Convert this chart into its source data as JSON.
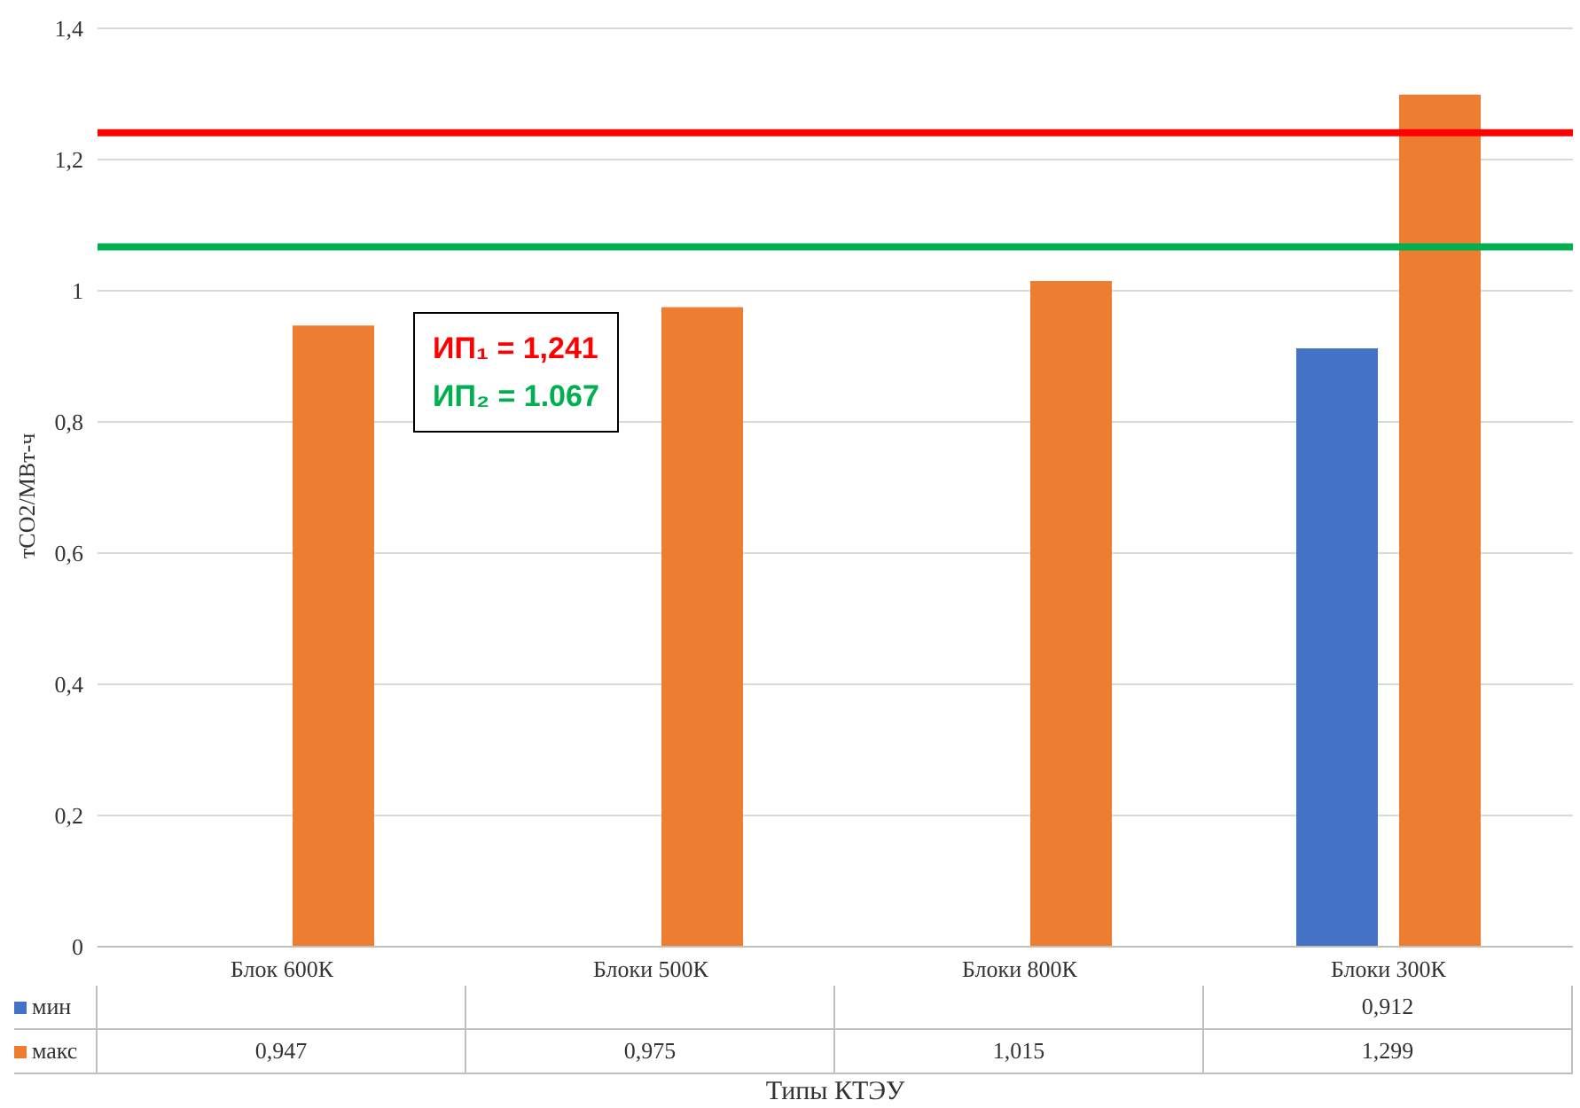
{
  "chart_data": {
    "type": "bar",
    "xlabel": "Типы КТЭУ",
    "ylabel": "тCO2/МВт-ч",
    "categories": [
      "Блок 600К",
      "Блоки 500К",
      "Блоки 800К",
      "Блоки 300К"
    ],
    "series": [
      {
        "name": "мин",
        "color": "#4472c4",
        "values": [
          null,
          null,
          null,
          0.912
        ],
        "value_labels": [
          null,
          null,
          null,
          "0,912"
        ]
      },
      {
        "name": "макс",
        "color": "#ed7d31",
        "values": [
          0.947,
          0.975,
          1.015,
          1.299
        ],
        "value_labels": [
          "0,947",
          "0,975",
          "1,015",
          "1,299"
        ]
      }
    ],
    "ylim": [
      0,
      1.4
    ],
    "yticks": [
      0,
      {
        "value": 0.2,
        "label": "0,2"
      },
      {
        "value": 0.4,
        "label": "0,4"
      },
      {
        "value": 0.6,
        "label": "0,6"
      },
      {
        "value": 0.8,
        "label": "0,8"
      },
      1,
      {
        "value": 1.2,
        "label": "1,2"
      },
      {
        "value": 1.4,
        "label": "1,4"
      }
    ],
    "grid": "y",
    "legend": "bottom",
    "ref_lines": [
      {
        "axis": "y",
        "value": 1.241,
        "label": "ИП₁ = 1,241",
        "color": "#ff0000"
      },
      {
        "axis": "y",
        "value": 1.067,
        "label": "ИП₂ = 1.067",
        "color": "#00b050"
      }
    ]
  }
}
